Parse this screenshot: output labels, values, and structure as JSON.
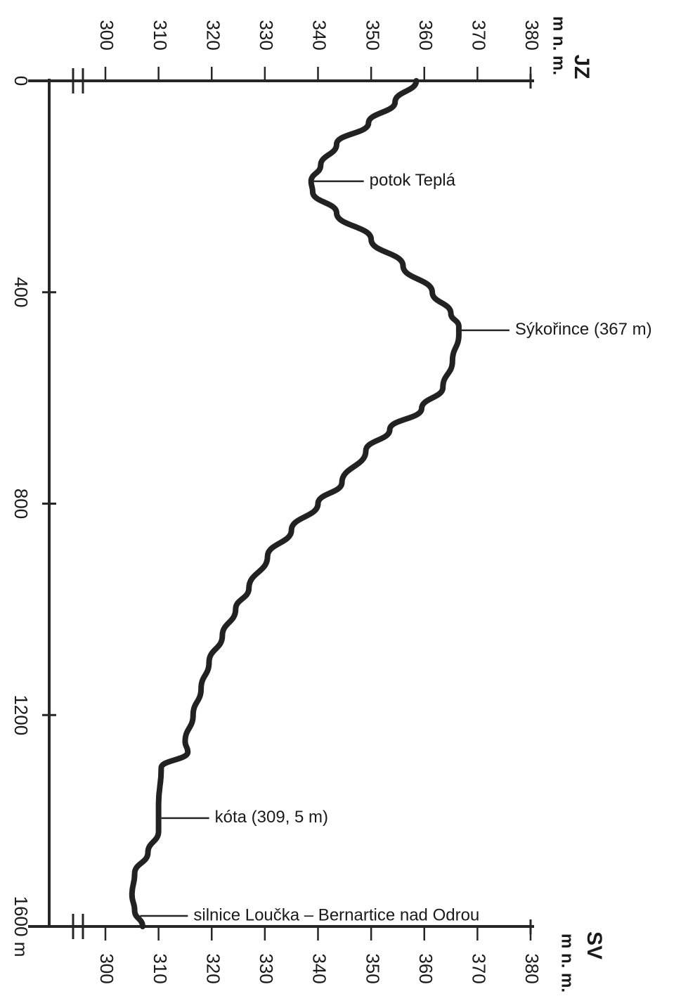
{
  "chart_data": {
    "type": "line",
    "title": "",
    "xlabel": "",
    "ylabel": "",
    "distance_axis": {
      "ticks": [
        "0",
        "400",
        "800",
        "1200",
        "1600 m"
      ],
      "tick_values": [
        0,
        400,
        800,
        1200,
        1600
      ],
      "range": [
        0,
        1600
      ]
    },
    "elevation_axis": {
      "ticks": [
        "300",
        "310",
        "320",
        "330",
        "340",
        "350",
        "360",
        "370",
        "380"
      ],
      "tick_values": [
        300,
        310,
        320,
        330,
        340,
        350,
        360,
        370,
        380
      ],
      "range": [
        300,
        380
      ],
      "unit": "m n. m."
    },
    "directions": {
      "start": "JZ",
      "end": "SV"
    },
    "series": [
      {
        "x": [
          0,
          40,
          80,
          120,
          160,
          190,
          210,
          250,
          300,
          350,
          400,
          440,
          465,
          480,
          530,
          580,
          620,
          660,
          700,
          760,
          800,
          850,
          900,
          960,
          1000,
          1050,
          1100,
          1150,
          1200,
          1250,
          1270,
          1300,
          1370,
          1420,
          1460,
          1500,
          1540,
          1570,
          1600
        ],
        "y": [
          358.5,
          354.5,
          349.5,
          343.5,
          340.5,
          338.7,
          339.0,
          343.5,
          350.0,
          356.0,
          361.5,
          365.0,
          366.5,
          366.5,
          365.3,
          363.5,
          359.5,
          353.5,
          349.0,
          344.5,
          340.0,
          335.0,
          330.5,
          327.0,
          324.5,
          322.0,
          319.5,
          318.0,
          316.5,
          315.0,
          315.5,
          310.5,
          310.0,
          310.0,
          308.0,
          305.5,
          305.0,
          305.5,
          307.0
        ]
      }
    ],
    "annotations": [
      {
        "text": "potok Teplá",
        "x": 190,
        "y": 338.7
      },
      {
        "text": "Sýkořince (367 m)",
        "x": 472,
        "y": 366.5
      },
      {
        "text": "kóta (309, 5 m)",
        "x": 1395,
        "y": 310.0
      },
      {
        "text": "silnice Loučka – Bernartice nad Odrou",
        "x": 1580,
        "y": 306.0
      }
    ]
  }
}
